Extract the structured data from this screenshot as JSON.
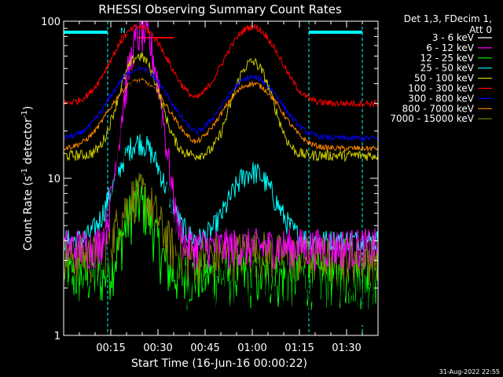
{
  "chart_data": {
    "type": "line",
    "title": "RHESSI Observing Summary Count Rates",
    "xlabel": "Start Time (16-Jun-16 00:00:22)",
    "ylabel_main": "Count Rate (s",
    "ylabel_sup1": "-1",
    "ylabel_mid": " detector",
    "ylabel_sup2": "-1",
    "ylabel_end": ")",
    "yscale": "log",
    "ylim": [
      1,
      100
    ],
    "xlim": [
      0,
      100
    ],
    "x_ticks": [
      15,
      30,
      45,
      60,
      75,
      90
    ],
    "x_ticklabels": [
      "00:15",
      "00:30",
      "00:45",
      "01:00",
      "01:15",
      "01:30"
    ],
    "y_ticks": [
      1,
      10,
      100
    ],
    "y_ticklabels": [
      "1",
      "10",
      "100"
    ],
    "legend_header": [
      "Det 1,3, FDecim 1,",
      "Att 0"
    ],
    "timestamp": "31-Aug-2022 22:55",
    "flag_labels": [
      "N",
      "F"
    ],
    "flag_colors": {
      "night": "#00ffff",
      "flare": "#ff0000",
      "saa_lines": "#00ffff"
    },
    "flags": {
      "night_bars": [
        [
          0,
          14
        ],
        [
          78,
          95
        ]
      ],
      "flare_bar": [
        23.5,
        35
      ]
    },
    "series": [
      {
        "name": "3 - 6 keV",
        "color": "#000000",
        "base": 1.9,
        "peaks": [
          [
            25,
            45,
            4.5
          ],
          [
            60,
            2.2,
            6
          ]
        ],
        "noise": 0.45,
        "floor": 1.0
      },
      {
        "name": "6 - 12 keV",
        "color": "#ff00ff",
        "base": 3.7,
        "peaks": [
          [
            25,
            85,
            4
          ]
        ],
        "noise": 0.3,
        "floor": 1.0
      },
      {
        "name": "12 - 25 keV",
        "color": "#00ff00",
        "base": 2.4,
        "peaks": [
          [
            24,
            7,
            4
          ],
          [
            60,
            2.3,
            5
          ]
        ],
        "noise": 0.4,
        "floor": 1.0
      },
      {
        "name": "25 - 50 keV",
        "color": "#00ffff",
        "base": 4.0,
        "peaks": [
          [
            24,
            17,
            6
          ],
          [
            60,
            11,
            6
          ]
        ],
        "noise": 0.18,
        "floor": 3.5
      },
      {
        "name": "50 - 100 keV",
        "color": "#cccc00",
        "base": 14,
        "peaks": [
          [
            24,
            60,
            5
          ],
          [
            60,
            55,
            5
          ]
        ],
        "noise": 0.08,
        "floor": 8
      },
      {
        "name": "100 - 300 keV",
        "color": "#ff0000",
        "base": 30,
        "peaks": [
          [
            24,
            92,
            7
          ],
          [
            60,
            92,
            7
          ]
        ],
        "noise": 0.05,
        "floor": 20
      },
      {
        "name": "300 - 800 keV",
        "color": "#0000ff",
        "base": 18,
        "peaks": [
          [
            24,
            50,
            7.5
          ],
          [
            60,
            44,
            7.5
          ]
        ],
        "noise": 0.04,
        "floor": 14
      },
      {
        "name": "800 - 7000 keV",
        "color": "#ff8800",
        "base": 15.5,
        "peaks": [
          [
            24,
            42,
            7.5
          ],
          [
            60,
            40,
            7.5
          ]
        ],
        "noise": 0.04,
        "floor": 12
      },
      {
        "name": "7000 - 15000 keV",
        "color": "#808000",
        "base": 3.2,
        "peaks": [
          [
            24,
            8,
            5
          ],
          [
            60,
            3.5,
            5
          ]
        ],
        "noise": 0.35,
        "floor": 1.0
      }
    ]
  }
}
